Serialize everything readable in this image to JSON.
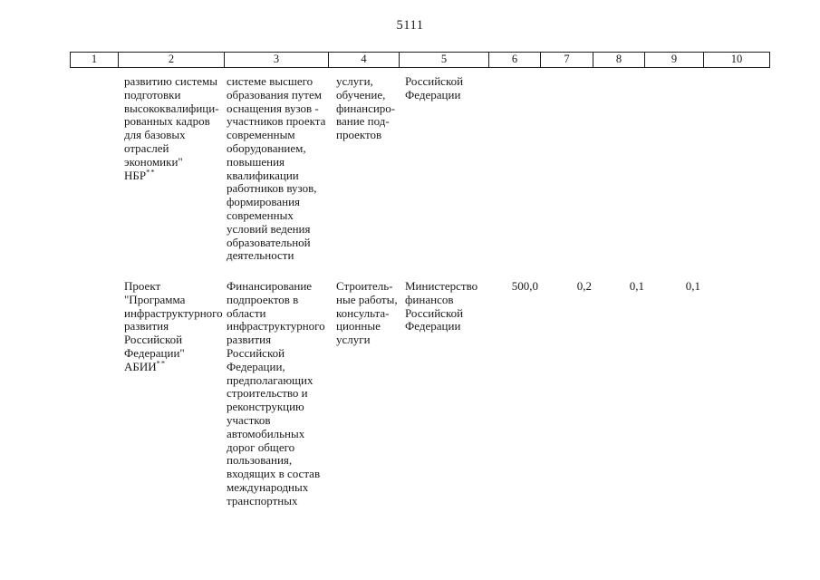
{
  "page_number": "5111",
  "table": {
    "headers": [
      "1",
      "2",
      "3",
      "4",
      "5",
      "6",
      "7",
      "8",
      "9",
      "10"
    ],
    "rows": [
      {
        "project_name": "развитию системы\nподготовки\nвысококвалифици-\nрованных кадров\nдля базовых\nотраслей\nэкономики\"\nНБР",
        "project_marker": "**",
        "description": "системе высшего\nобразования путем\nоснащения вузов -\nучастников проекта\nсовременным\nоборудованием,\nповышения\nквалификации\nработников вузов,\nформирования\nсовременных\nусловий ведения\nобразовательной\nдеятельности",
        "expense_types": "услуги,\nобучение,\nфинансиро-\nвание под-\nпроектов",
        "executor": "Российской\nФедерации",
        "amount_6": "",
        "amount_7": "",
        "amount_8": "",
        "amount_9": ""
      },
      {
        "project_name": "Проект\n\"Программа\nинфраструктурного\nразвития\nРоссийской\nФедерации\"\nАБИИ",
        "project_marker": "**",
        "description": "Финансирование\nподпроектов в\nобласти\nинфраструктурного\nразвития\nРоссийской\nФедерации,\nпредполагающих\nстроительство и\nреконструкцию\nучастков\nавтомобильных\nдорог общего\nпользования,\nвходящих в состав\nмеждународных\nтранспортных",
        "expense_types": "Строитель-\nные работы,\nконсульта-\nционные\nуслуги",
        "executor": "Министерство\nфинансов\nРоссийской\nФедерации",
        "amount_6": "500,0",
        "amount_7": "0,2",
        "amount_8": "0,1",
        "amount_9": "0,1"
      }
    ]
  }
}
